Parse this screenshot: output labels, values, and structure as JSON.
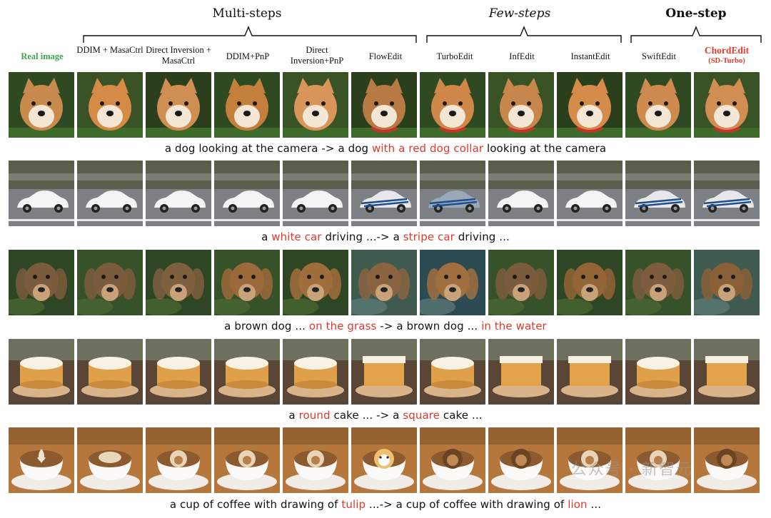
{
  "groups": [
    {
      "title": "Multi-steps",
      "style": "normal"
    },
    {
      "title": "Few-steps",
      "style": "italic"
    },
    {
      "title": "One-step",
      "style": "bold"
    }
  ],
  "columns": [
    {
      "label": "Real image"
    },
    {
      "label": "DDIM + MasaCtrl"
    },
    {
      "label": "Direct Inversion + MasaCtrl"
    },
    {
      "label": "DDIM+PnP"
    },
    {
      "label": "Direct Inversion+PnP"
    },
    {
      "label": "FlowEdit"
    },
    {
      "label": "TurboEdit"
    },
    {
      "label": "InfEdit"
    },
    {
      "label": "InstantEdit"
    },
    {
      "label": "SwiftEdit"
    },
    {
      "label": "ChordEdit",
      "sublabel": "(SD-Turbo)"
    }
  ],
  "rows": [
    {
      "subject": "shiba",
      "caption": {
        "a": "a dog looking at the camera -> a dog ",
        "hl1": "with a red dog collar",
        "b": " looking at the camera",
        "hl2": "",
        "c": ""
      }
    },
    {
      "subject": "car",
      "caption": {
        "a": "a ",
        "hl1": "white car",
        "b": " driving ...-> a ",
        "hl2": "stripe car",
        "c": " driving ..."
      }
    },
    {
      "subject": "lab",
      "caption": {
        "a": "a brown dog ... ",
        "hl1": "on the grass",
        "b": " -> a brown dog ... ",
        "hl2": "in the water",
        "c": ""
      }
    },
    {
      "subject": "cake",
      "caption": {
        "a": "a ",
        "hl1": "round",
        "b": " cake ... -> a ",
        "hl2": "square",
        "c": " cake ..."
      }
    },
    {
      "subject": "coffee",
      "caption": {
        "a": "a cup of coffee with drawing of ",
        "hl1": "tulip",
        "b": " ...-> a cup of coffee with drawing of ",
        "hl2": "lion",
        "c": " ..."
      }
    }
  ],
  "watermark": "公众号 · 新智元",
  "colors": {
    "accent_red": "#e0392b",
    "real_green": "#3ea64a"
  }
}
